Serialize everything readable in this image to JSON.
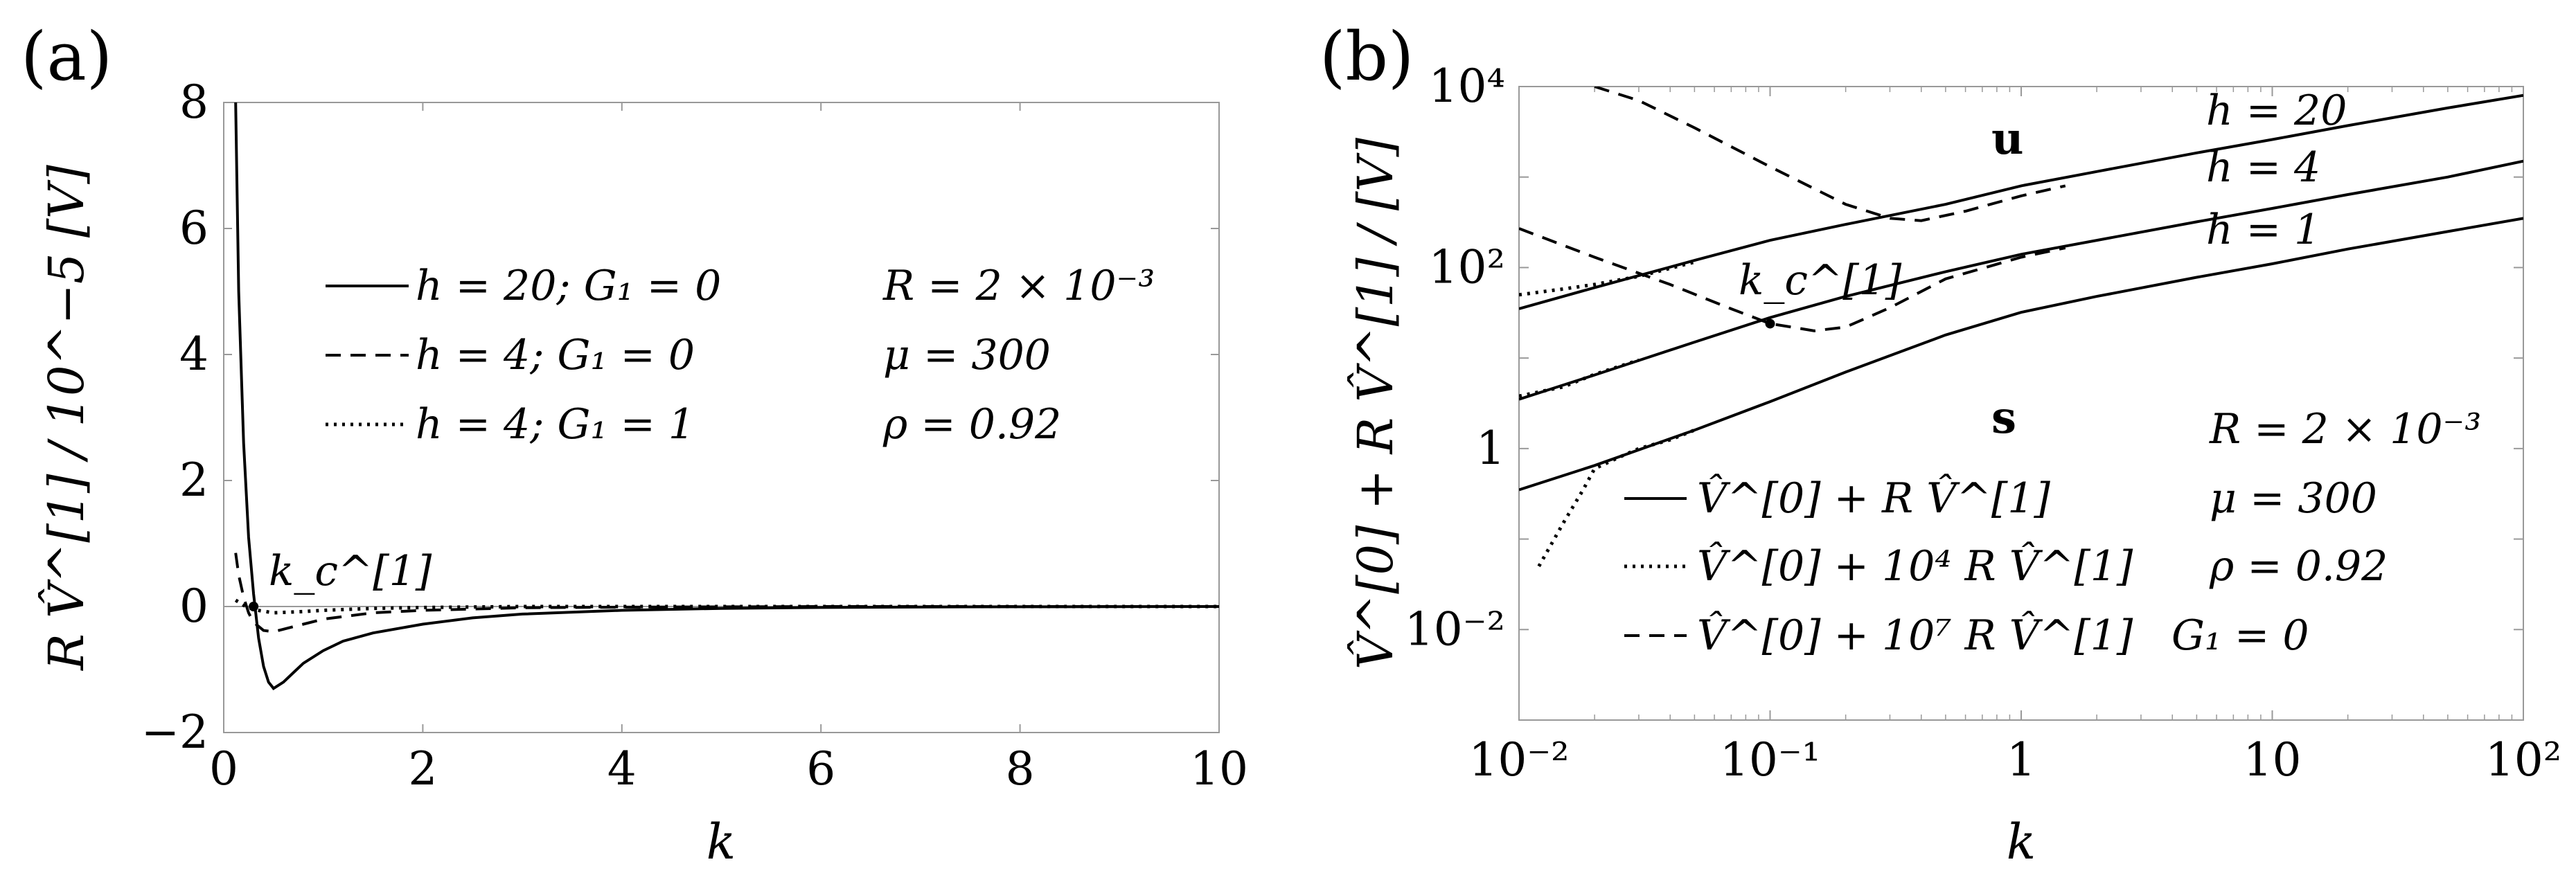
{
  "panels": [
    {
      "label": "(a)",
      "ylabel": "R V̂^[1] / 10^−5 [V]",
      "xlabel": "k",
      "annotation": "k_c^[1]",
      "legend": [
        {
          "style": "solid",
          "text": "h = 20;  G₁ = 0"
        },
        {
          "style": "dashed",
          "text": "h = 4;    G₁ = 0"
        },
        {
          "style": "dotted",
          "text": "h = 4;    G₁ = 1"
        }
      ],
      "params": [
        "R = 2 × 10⁻³",
        "μ = 300",
        "ρ = 0.92"
      ]
    },
    {
      "label": "(b)",
      "ylabel": "V̂^[0] + R V̂^[1] / [V]",
      "xlabel": "k",
      "annotation": "k_c^[1]",
      "regions": [
        "u",
        "s"
      ],
      "curve_labels": [
        "h = 20",
        "h = 4",
        "h = 1"
      ],
      "legend": [
        {
          "style": "solid",
          "text": "V̂^[0] + R V̂^[1]"
        },
        {
          "style": "dotted",
          "text": "V̂^[0] + 10⁴ R V̂^[1]"
        },
        {
          "style": "dashed",
          "text": "V̂^[0] + 10⁷ R V̂^[1]"
        }
      ],
      "params": [
        "R = 2 × 10⁻³",
        "μ = 300",
        "ρ = 0.92",
        "G₁ = 0"
      ]
    }
  ],
  "chart_data": [
    {
      "type": "line",
      "xlabel": "k",
      "ylabel": "R V̂^[1] / 10^−5 [V]",
      "xlim": [
        0,
        10
      ],
      "ylim": [
        -2,
        8
      ],
      "xticks": [
        "0",
        "2",
        "4",
        "6",
        "8",
        "10"
      ],
      "yticks": [
        "−2",
        "0",
        "2",
        "4",
        "6",
        "8"
      ],
      "series": [
        {
          "name": "h = 20; G₁ = 0",
          "style": "solid",
          "x": [
            0.12,
            0.15,
            0.2,
            0.25,
            0.3,
            0.35,
            0.4,
            0.45,
            0.5,
            0.6,
            0.7,
            0.8,
            1.0,
            1.2,
            1.5,
            2.0,
            2.5,
            3.0,
            4.0,
            5.0,
            6.0,
            7.0,
            8.0,
            10.0
          ],
          "y": [
            8.0,
            5.0,
            2.6,
            1.1,
            0.2,
            -0.5,
            -0.95,
            -1.2,
            -1.3,
            -1.2,
            -1.05,
            -0.9,
            -0.7,
            -0.55,
            -0.42,
            -0.28,
            -0.18,
            -0.12,
            -0.06,
            -0.03,
            -0.015,
            -0.008,
            -0.004,
            0.0
          ]
        },
        {
          "name": "h = 4; G₁ = 0",
          "style": "dashed",
          "x": [
            0.12,
            0.15,
            0.2,
            0.25,
            0.3,
            0.4,
            0.5,
            0.6,
            0.8,
            1.0,
            1.5,
            2.0,
            3.0,
            4.0,
            6.0,
            10.0
          ],
          "y": [
            0.85,
            0.5,
            0.15,
            -0.1,
            -0.25,
            -0.38,
            -0.4,
            -0.36,
            -0.28,
            -0.2,
            -0.1,
            -0.06,
            -0.02,
            -0.01,
            0.0,
            0.0
          ]
        },
        {
          "name": "h = 4; G₁ = 1",
          "style": "dotted",
          "x": [
            0.12,
            0.2,
            0.3,
            0.5,
            0.8,
            1.0,
            1.5,
            2.0,
            3.0,
            10.0
          ],
          "y": [
            0.1,
            0.02,
            -0.05,
            -0.1,
            -0.08,
            -0.06,
            -0.03,
            -0.015,
            0.0,
            0.0
          ]
        }
      ],
      "annotation_point": {
        "label": "k_c^[1]",
        "x": 0.3,
        "y": 0.0
      }
    },
    {
      "type": "line",
      "xscale": "log",
      "yscale": "log",
      "xlabel": "k",
      "ylabel": "V̂^[0] + R V̂^[1] / [V]",
      "xlim": [
        0.01,
        100
      ],
      "ylim": [
        0.001,
        10000
      ],
      "xticks": [
        "10⁻²",
        "10⁻¹",
        "1",
        "10",
        "10²"
      ],
      "yticks": [
        "10⁻²",
        "1",
        "10²",
        "10⁴"
      ],
      "series": [
        {
          "name": "h = 20 (V̂^[0] + R V̂^[1])",
          "style": "solid",
          "x": [
            0.01,
            0.02,
            0.05,
            0.1,
            0.2,
            0.5,
            1,
            2,
            5,
            10,
            20,
            50,
            100
          ],
          "y": [
            35,
            60,
            120,
            200,
            300,
            500,
            800,
            1150,
            1850,
            2600,
            3700,
            5800,
            8000
          ]
        },
        {
          "name": "h = 4 (V̂^[0] + R V̂^[1])",
          "style": "solid",
          "x": [
            0.01,
            0.02,
            0.05,
            0.1,
            0.2,
            0.5,
            1,
            2,
            5,
            10,
            20,
            50,
            100
          ],
          "y": [
            3.5,
            6.5,
            15,
            28,
            48,
            90,
            140,
            200,
            320,
            450,
            640,
            1000,
            1500
          ]
        },
        {
          "name": "h = 1 (V̂^[0] + R V̂^[1])",
          "style": "solid",
          "x": [
            0.01,
            0.02,
            0.05,
            0.1,
            0.2,
            0.5,
            1,
            2,
            5,
            10,
            20,
            50,
            100
          ],
          "y": [
            0.35,
            0.65,
            1.6,
            3.3,
            7,
            18,
            32,
            48,
            78,
            110,
            160,
            250,
            350
          ]
        },
        {
          "name": "h = 20 (V̂^[0] + 10⁴ R V̂^[1])",
          "style": "dotted",
          "x": [
            0.01,
            0.015,
            0.02,
            0.03,
            0.05
          ],
          "y": [
            50,
            58,
            65,
            80,
            115
          ]
        },
        {
          "name": "h = 4 (V̂^[0] + 10⁴ R V̂^[1])",
          "style": "dotted",
          "x": [
            0.01,
            0.015,
            0.02,
            0.03
          ],
          "y": [
            3.8,
            4.8,
            6.6,
            9.5
          ]
        },
        {
          "name": "h = 1 (V̂^[0] + 10⁴ R V̂^[1])",
          "style": "dotted",
          "x": [
            0.012,
            0.015,
            0.018,
            0.02,
            0.025,
            0.03,
            0.04,
            0.05
          ],
          "y": [
            0.05,
            0.15,
            0.35,
            0.6,
            0.8,
            1.0,
            1.25,
            1.6
          ]
        },
        {
          "name": "h = 20 (V̂^[0] + 10⁷ R V̂^[1])",
          "style": "dashed",
          "x": [
            0.02,
            0.03,
            0.05,
            0.1,
            0.2,
            0.3,
            0.4,
            0.6,
            1.0,
            1.5
          ],
          "y": [
            10000,
            7000,
            3500,
            1300,
            500,
            350,
            330,
            420,
            620,
            800
          ]
        },
        {
          "name": "h = 4 (V̂^[0] + 10⁷ R V̂^[1])",
          "style": "dashed",
          "x": [
            0.01,
            0.02,
            0.04,
            0.07,
            0.1,
            0.15,
            0.2,
            0.3,
            0.5,
            1.0,
            1.5
          ],
          "y": [
            270,
            130,
            65,
            35,
            24,
            20,
            22,
            36,
            75,
            130,
            165
          ]
        }
      ],
      "annotation_point": {
        "label": "k_c^[1]",
        "x": 0.1,
        "y": 24
      }
    }
  ]
}
